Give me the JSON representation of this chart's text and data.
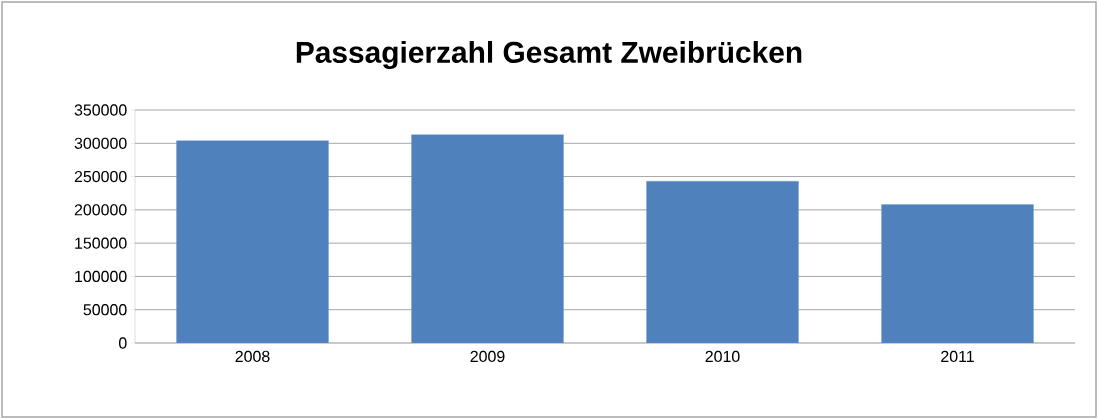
{
  "chart_data": {
    "type": "bar",
    "title": "Passagierzahl Gesamt Zweibrücken",
    "categories": [
      "2008",
      "2009",
      "2010",
      "2011"
    ],
    "values": [
      304000,
      313000,
      243000,
      208000
    ],
    "color": "#4f81bd",
    "ylim": [
      0,
      350000
    ],
    "yticks": [
      0,
      50000,
      100000,
      150000,
      200000,
      250000,
      300000,
      350000
    ],
    "grid": "y"
  }
}
